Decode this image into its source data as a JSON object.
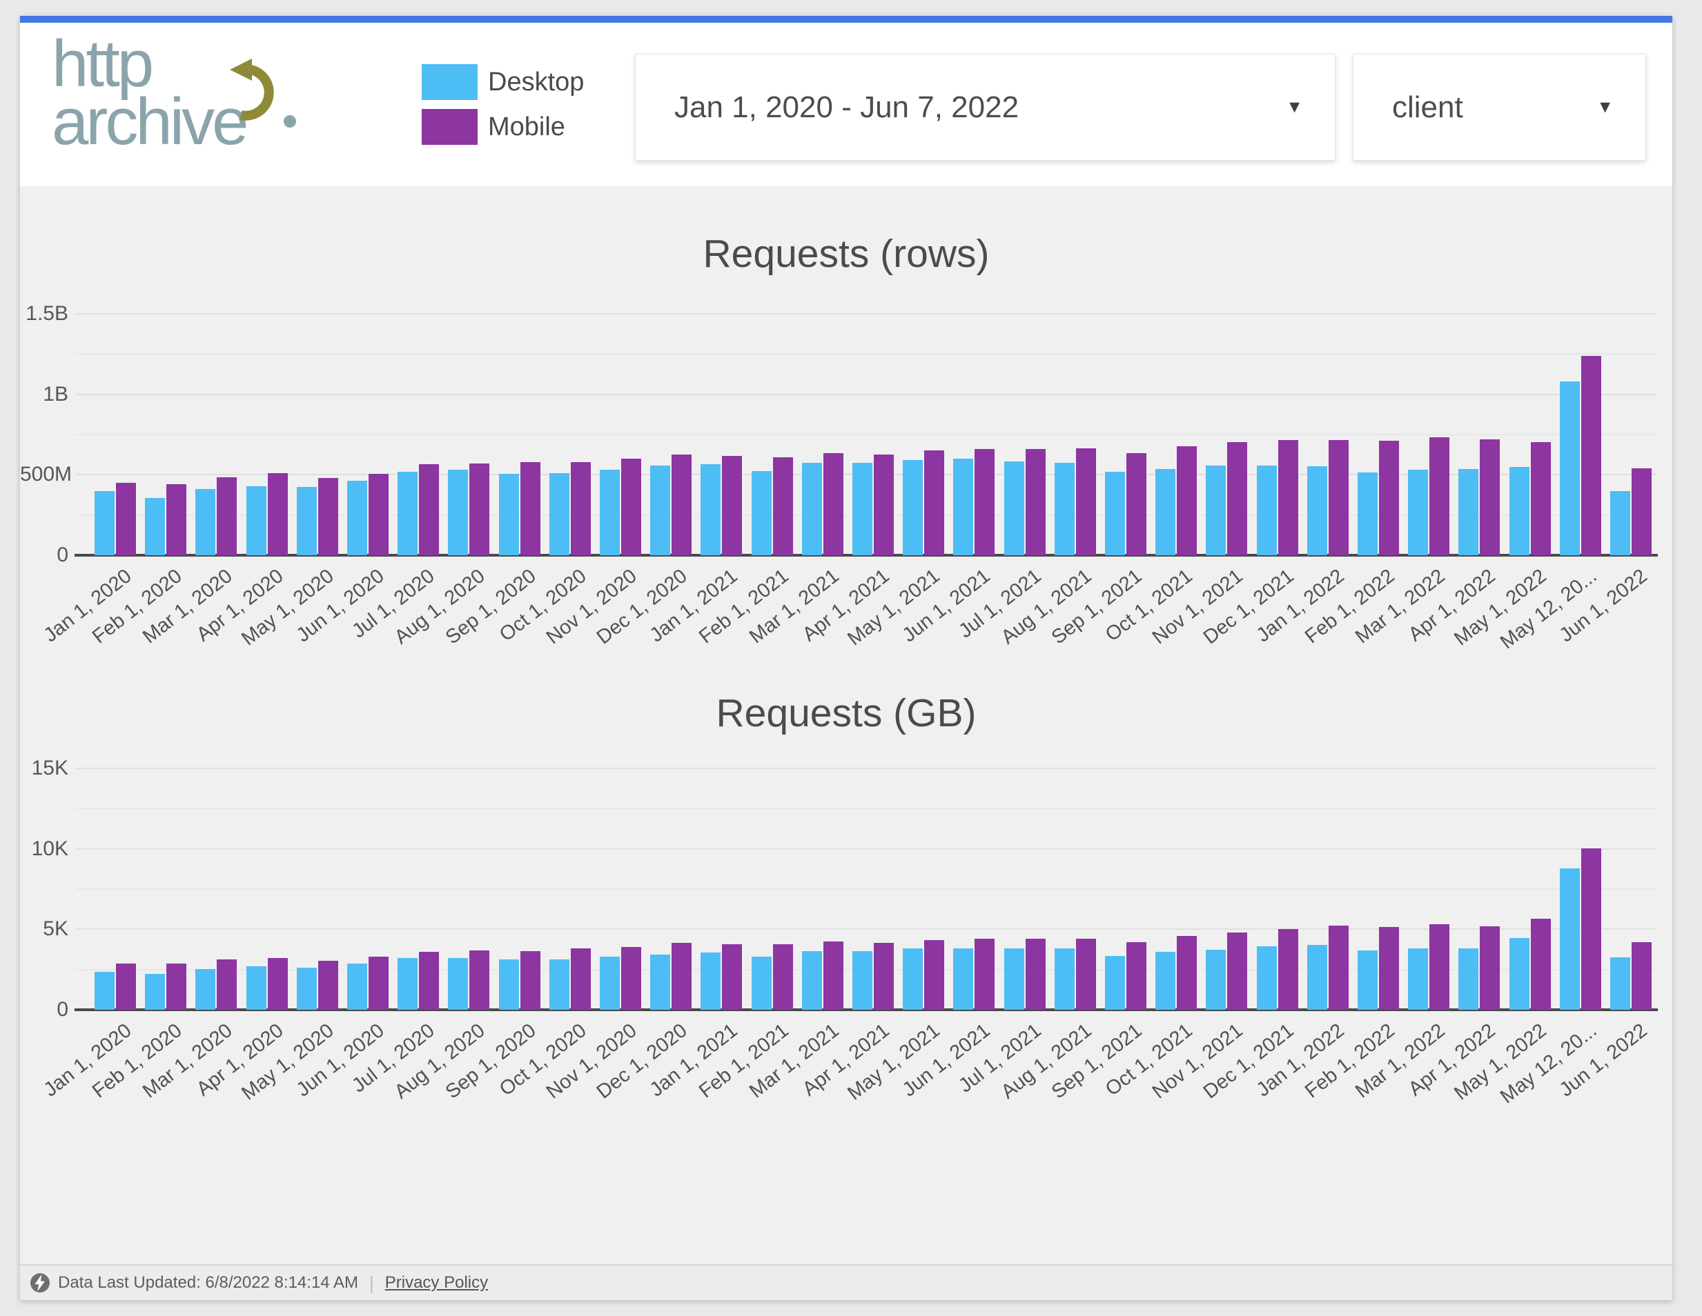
{
  "accent_color": "#4377e6",
  "header": {
    "logo": {
      "line1": "http",
      "line2": "archive",
      "color": "#8ba4ac",
      "arrow_color": "#8e8a38"
    },
    "legend": {
      "items": [
        {
          "label": "Desktop",
          "color": "#4dbdf5"
        },
        {
          "label": "Mobile",
          "color": "#8d35a0"
        }
      ]
    },
    "date_range_dropdown": {
      "value": "Jan 1, 2020 - Jun 7, 2022",
      "caret": "▼"
    },
    "lens_dropdown": {
      "value": "client",
      "caret": "▼"
    }
  },
  "chart_data": [
    {
      "type": "bar",
      "title": "Requests (rows)",
      "unit": "rows (millions)",
      "ylim": [
        0,
        1500
      ],
      "grid": true,
      "legend_position": "page-header",
      "y_major_ticks": [
        {
          "value": 0,
          "label": "0"
        },
        {
          "value": 500,
          "label": "500M"
        },
        {
          "value": 1000,
          "label": "1B"
        },
        {
          "value": 1500,
          "label": "1.5B"
        }
      ],
      "y_minor_ticks": [
        250,
        750,
        1250
      ],
      "categories": [
        "Jan 1, 2020",
        "Feb 1, 2020",
        "Mar 1, 2020",
        "Apr 1, 2020",
        "May 1, 2020",
        "Jun 1, 2020",
        "Jul 1, 2020",
        "Aug 1, 2020",
        "Sep 1, 2020",
        "Oct 1, 2020",
        "Nov 1, 2020",
        "Dec 1, 2020",
        "Jan 1, 2021",
        "Feb 1, 2021",
        "Mar 1, 2021",
        "Apr 1, 2021",
        "May 1, 2021",
        "Jun 1, 2021",
        "Jul 1, 2021",
        "Aug 1, 2021",
        "Sep 1, 2021",
        "Oct 1, 2021",
        "Nov 1, 2021",
        "Dec 1, 2021",
        "Jan 1, 2022",
        "Feb 1, 2022",
        "Mar 1, 2022",
        "Apr 1, 2022",
        "May 1, 2022",
        "May 12, 20...",
        "Jun 1, 2022"
      ],
      "series": [
        {
          "name": "Desktop",
          "color": "#4dbdf5",
          "values": [
            400,
            355,
            410,
            430,
            425,
            465,
            520,
            530,
            505,
            510,
            530,
            558,
            565,
            525,
            575,
            575,
            593,
            600,
            585,
            576,
            520,
            535,
            556,
            557,
            555,
            513,
            532,
            537,
            547,
            1082,
            399
          ]
        },
        {
          "name": "Mobile",
          "color": "#8d35a0",
          "values": [
            450,
            440,
            483,
            510,
            478,
            505,
            565,
            568,
            580,
            578,
            600,
            625,
            619,
            608,
            636,
            626,
            651,
            660,
            661,
            664,
            633,
            677,
            703,
            714,
            715,
            710,
            735,
            721,
            705,
            1239,
            539
          ]
        }
      ]
    },
    {
      "type": "bar",
      "title": "Requests (GB)",
      "unit": "GB",
      "ylim": [
        0,
        15000
      ],
      "grid": true,
      "legend_position": "page-header",
      "y_major_ticks": [
        {
          "value": 0,
          "label": "0"
        },
        {
          "value": 5000,
          "label": "5K"
        },
        {
          "value": 10000,
          "label": "10K"
        },
        {
          "value": 15000,
          "label": "15K"
        }
      ],
      "y_minor_ticks": [
        2500,
        7500,
        12500
      ],
      "categories": [
        "Jan 1, 2020",
        "Feb 1, 2020",
        "Mar 1, 2020",
        "Apr 1, 2020",
        "May 1, 2020",
        "Jun 1, 2020",
        "Jul 1, 2020",
        "Aug 1, 2020",
        "Sep 1, 2020",
        "Oct 1, 2020",
        "Nov 1, 2020",
        "Dec 1, 2020",
        "Jan 1, 2021",
        "Feb 1, 2021",
        "Mar 1, 2021",
        "Apr 1, 2021",
        "May 1, 2021",
        "Jun 1, 2021",
        "Jul 1, 2021",
        "Aug 1, 2021",
        "Sep 1, 2021",
        "Oct 1, 2021",
        "Nov 1, 2021",
        "Dec 1, 2021",
        "Jan 1, 2022",
        "Feb 1, 2022",
        "Mar 1, 2022",
        "Apr 1, 2022",
        "May 1, 2022",
        "May 12, 20...",
        "Jun 1, 2022"
      ],
      "series": [
        {
          "name": "Desktop",
          "color": "#4dbdf5",
          "values": [
            2360,
            2250,
            2540,
            2710,
            2620,
            2880,
            3220,
            3220,
            3150,
            3120,
            3300,
            3450,
            3550,
            3320,
            3650,
            3630,
            3810,
            3810,
            3810,
            3810,
            3350,
            3580,
            3740,
            3930,
            4020,
            3670,
            3810,
            3810,
            4440,
            8770,
            3250
          ]
        },
        {
          "name": "Mobile",
          "color": "#8d35a0",
          "values": [
            2890,
            2880,
            3120,
            3210,
            3050,
            3280,
            3620,
            3670,
            3650,
            3820,
            3880,
            4150,
            4070,
            4070,
            4250,
            4170,
            4350,
            4400,
            4410,
            4400,
            4210,
            4600,
            4780,
            5010,
            5220,
            5140,
            5320,
            5190,
            5650,
            10050,
            4190
          ]
        }
      ]
    }
  ],
  "footer": {
    "updated": "Data Last Updated: 6/8/2022 8:14:14 AM",
    "separator": "|",
    "privacy_link": "Privacy Policy"
  }
}
